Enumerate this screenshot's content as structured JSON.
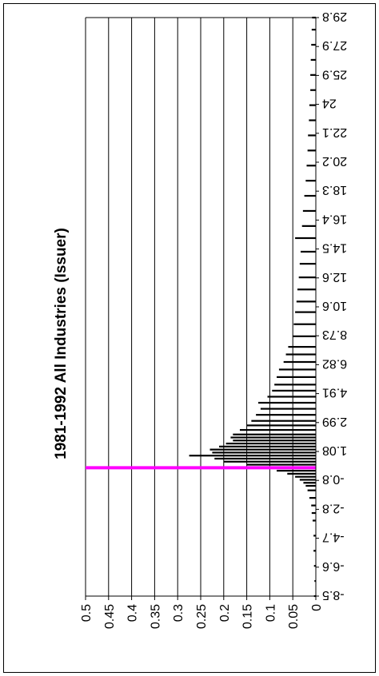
{
  "chart_data": {
    "type": "bar",
    "title": "1981-1992 All Industries (Issuer)",
    "xlabel": "",
    "ylabel": "",
    "orientation": "rotated 90° clockwise (categories run top-to-bottom, values rise leftward)",
    "ylim": [
      0,
      0.5
    ],
    "y_ticks": [
      "0",
      "0.05",
      "0.1",
      "0.15",
      "0.2",
      "0.25",
      "0.3",
      "0.35",
      "0.4",
      "0.45",
      "0.5"
    ],
    "x_tick_labels": [
      "-8.5",
      "-6.6",
      "-4.7",
      "-2.8",
      "-0.8",
      "1.08",
      "2.99",
      "4.91",
      "6.82",
      "8.73",
      "10.6",
      "12.6",
      "14.5",
      "16.4",
      "18.3",
      "20.2",
      "22.1",
      "24",
      "25.9",
      "27.9",
      "29.8"
    ],
    "x_range": [
      -8.5,
      29.8
    ],
    "grid": true,
    "bar_color": "#000000",
    "marker_line": {
      "x": 0.0,
      "color": "#ff00ff"
    },
    "series": [
      {
        "x": [
          -8.5,
          -7.5,
          -6.5,
          -5.5,
          -4.5,
          -3.5,
          -3.0,
          -2.5,
          -2.0,
          -1.5,
          -1.2,
          -1.0,
          -0.8,
          -0.6,
          -0.4,
          -0.2,
          0.0,
          0.2,
          0.4,
          0.6,
          0.8,
          1.0,
          1.2,
          1.4,
          1.6,
          1.8,
          2.0,
          2.2,
          2.5,
          2.8,
          3.1,
          3.5,
          3.9,
          4.3,
          4.7,
          5.1,
          5.5,
          6.0,
          6.5,
          7.0,
          7.5,
          8.0,
          8.7,
          9.5,
          10.3,
          11.0,
          11.8,
          12.6,
          13.5,
          14.3,
          15.2,
          16.0,
          17.0,
          18.0,
          19.0,
          20.0,
          21.0,
          22.0,
          23.0,
          24.0,
          25.0,
          26.0,
          27.0,
          28.0,
          29.0,
          29.8
        ],
        "values": [
          0.004,
          0.003,
          0.004,
          0.005,
          0.005,
          0.007,
          0.009,
          0.01,
          0.014,
          0.018,
          0.022,
          0.027,
          0.035,
          0.045,
          0.062,
          0.085,
          0.105,
          0.15,
          0.2,
          0.22,
          0.275,
          0.225,
          0.23,
          0.21,
          0.195,
          0.18,
          0.185,
          0.18,
          0.165,
          0.15,
          0.14,
          0.13,
          0.12,
          0.125,
          0.105,
          0.095,
          0.09,
          0.085,
          0.08,
          0.07,
          0.065,
          0.06,
          0.05,
          0.048,
          0.045,
          0.042,
          0.04,
          0.037,
          0.035,
          0.033,
          0.045,
          0.03,
          0.028,
          0.025,
          0.022,
          0.02,
          0.018,
          0.017,
          0.015,
          0.014,
          0.012,
          0.012,
          0.011,
          0.01,
          0.009,
          0.008
        ]
      }
    ]
  }
}
